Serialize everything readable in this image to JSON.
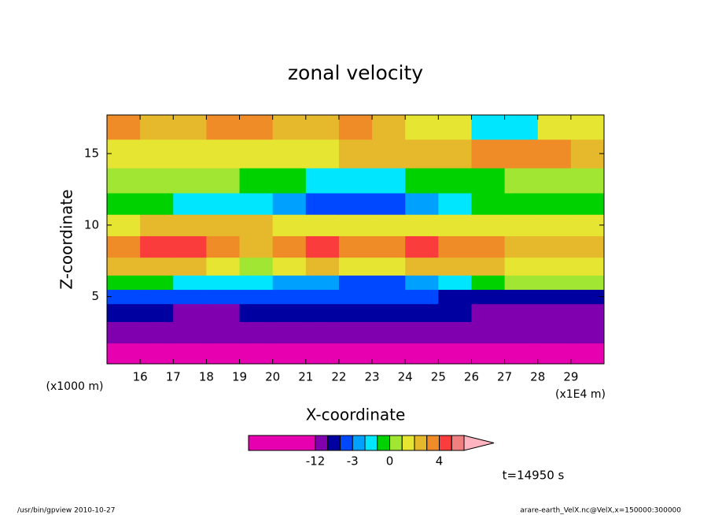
{
  "chart_data": {
    "type": "contour",
    "title": "zonal velocity",
    "x_label": "X-coordinate",
    "y_label": "Z-coordinate",
    "y_unit_label": "(x1000 m)",
    "x_unit_label": "(x1E4 m)",
    "time_label": "t=14950 s",
    "footer_left": "/usr/bin/gpview   2010-10-27",
    "footer_right": "arare-earth_VelX.nc@VelX,x=150000:300000",
    "xlim": [
      15,
      30
    ],
    "ylim": [
      0.3,
      17.7
    ],
    "xticks": [
      16,
      17,
      18,
      19,
      20,
      21,
      22,
      23,
      24,
      25,
      26,
      27,
      28,
      29
    ],
    "yticks": [
      5,
      10,
      15
    ],
    "x": [
      15.5,
      16.5,
      17.5,
      18.5,
      19.5,
      20.5,
      21.5,
      22.5,
      23.5,
      24.5,
      25.5,
      26.5,
      27.5,
      28.5,
      29.5
    ],
    "y": [
      1,
      2.5,
      4,
      5,
      6,
      7,
      8.5,
      10,
      11.5,
      13,
      15,
      17
    ],
    "z": [
      [
        -14,
        -14,
        -14,
        -14,
        -14,
        -14,
        -14,
        -14,
        -14,
        -14,
        -14,
        -14,
        -14,
        -14,
        -14
      ],
      [
        -10,
        -10,
        -10,
        -10,
        -10,
        -10,
        -10,
        -10,
        -10,
        -10,
        -10,
        -10,
        -10,
        -10,
        -10
      ],
      [
        -7,
        -7,
        -9,
        -9,
        -7,
        -7,
        -7,
        -7,
        -7,
        -7,
        -7,
        -9,
        -9,
        -9,
        -9
      ],
      [
        -4,
        -4,
        -4,
        -4,
        -4,
        -4,
        -4,
        -4,
        -4,
        -4,
        -6,
        -6,
        -6,
        -6,
        -6
      ],
      [
        -0.5,
        -0.5,
        -1.5,
        -1.5,
        -1.5,
        -2.5,
        -2.5,
        -3.5,
        -3.5,
        -2.5,
        -1.5,
        -0.5,
        0.5,
        0.5,
        0.5
      ],
      [
        2.5,
        2.5,
        2.5,
        1.5,
        0.5,
        1.5,
        2.5,
        1.5,
        1.5,
        2.5,
        2.5,
        2.5,
        1.5,
        1.5,
        1.5
      ],
      [
        3.5,
        4.5,
        4.5,
        3.5,
        2.5,
        3.5,
        4.5,
        3.5,
        3.5,
        4.5,
        3.5,
        3.5,
        2.5,
        2.5,
        2.5
      ],
      [
        1.5,
        2.5,
        2.5,
        2.5,
        2.5,
        1.5,
        1.5,
        1.5,
        1.5,
        1.5,
        1.5,
        1.5,
        1.5,
        1.5,
        1.5
      ],
      [
        -0.5,
        -0.5,
        -1.5,
        -1.5,
        -1.5,
        -2.5,
        -4,
        -4,
        -4,
        -2.5,
        -1.5,
        -0.5,
        -0.5,
        -0.5,
        -0.5
      ],
      [
        0.5,
        0.5,
        0.5,
        0.5,
        -0.5,
        -0.5,
        -1.5,
        -1.5,
        -1.5,
        -0.5,
        -0.5,
        -0.5,
        0.5,
        0.5,
        0.5
      ],
      [
        1.5,
        1.5,
        1.5,
        1.5,
        1.5,
        1.5,
        1.5,
        2.5,
        2.5,
        2.5,
        2.5,
        3.5,
        3.5,
        3.5,
        2.5
      ],
      [
        3.5,
        2.5,
        2.5,
        3.5,
        3.5,
        2.5,
        2.5,
        3.5,
        2.5,
        1.5,
        1.5,
        -1.5,
        -1.5,
        1.5,
        1.5
      ]
    ],
    "levels": [
      -12,
      -8,
      -5,
      -3,
      -2,
      -1,
      0,
      1,
      2,
      3,
      4,
      6,
      8
    ],
    "colors": [
      "#e600b0",
      "#8000b0",
      "#0000a0",
      "#0048ff",
      "#00a0ff",
      "#00e6ff",
      "#00d200",
      "#a0e632",
      "#e6e632",
      "#e6b92d",
      "#f08c28",
      "#fa3c3c",
      "#f08080",
      "#ffb4c0"
    ],
    "colorbar_ticks": [
      -12,
      -3,
      0,
      4
    ]
  }
}
